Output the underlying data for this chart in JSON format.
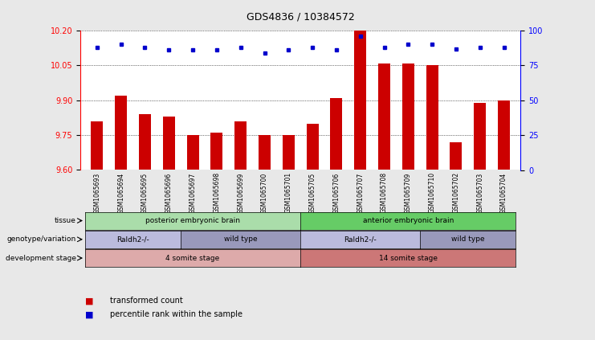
{
  "title": "GDS4836 / 10384572",
  "samples": [
    "GSM1065693",
    "GSM1065694",
    "GSM1065695",
    "GSM1065696",
    "GSM1065697",
    "GSM1065698",
    "GSM1065699",
    "GSM1065700",
    "GSM1065701",
    "GSM1065705",
    "GSM1065706",
    "GSM1065707",
    "GSM1065708",
    "GSM1065709",
    "GSM1065710",
    "GSM1065702",
    "GSM1065703",
    "GSM1065704"
  ],
  "bar_values": [
    9.81,
    9.92,
    9.84,
    9.83,
    9.75,
    9.76,
    9.81,
    9.75,
    9.75,
    9.8,
    9.91,
    10.2,
    10.06,
    10.06,
    10.05,
    9.72,
    9.89,
    9.9
  ],
  "percentile_ranks": [
    88,
    90,
    88,
    86,
    86,
    86,
    88,
    84,
    86,
    88,
    86,
    96,
    88,
    90,
    90,
    87,
    88,
    88
  ],
  "ylim_left": [
    9.6,
    10.2
  ],
  "ylim_right": [
    0,
    100
  ],
  "yticks_left": [
    9.6,
    9.75,
    9.9,
    10.05,
    10.2
  ],
  "yticks_right": [
    0,
    25,
    50,
    75,
    100
  ],
  "bar_color": "#cc0000",
  "dot_color": "#0000cc",
  "background_color": "#e8e8e8",
  "plot_bg": "#ffffff",
  "tissue_labels": [
    {
      "text": "posterior embryonic brain",
      "start": 0,
      "end": 8,
      "color": "#aaddaa"
    },
    {
      "text": "anterior embryonic brain",
      "start": 9,
      "end": 17,
      "color": "#66cc66"
    }
  ],
  "genotype_labels": [
    {
      "text": "Raldh2-/-",
      "start": 0,
      "end": 3,
      "color": "#bbbbdd"
    },
    {
      "text": "wild type",
      "start": 4,
      "end": 8,
      "color": "#9999bb"
    },
    {
      "text": "Raldh2-/-",
      "start": 9,
      "end": 13,
      "color": "#bbbbdd"
    },
    {
      "text": "wild type",
      "start": 14,
      "end": 17,
      "color": "#9999bb"
    }
  ],
  "stage_labels": [
    {
      "text": "4 somite stage",
      "start": 0,
      "end": 8,
      "color": "#ddaaaa"
    },
    {
      "text": "14 somite stage",
      "start": 9,
      "end": 17,
      "color": "#cc7777"
    }
  ],
  "row_labels": [
    "tissue",
    "genotype/variation",
    "development stage"
  ],
  "legend_items": [
    {
      "label": "transformed count",
      "color": "#cc0000"
    },
    {
      "label": "percentile rank within the sample",
      "color": "#0000cc"
    }
  ]
}
